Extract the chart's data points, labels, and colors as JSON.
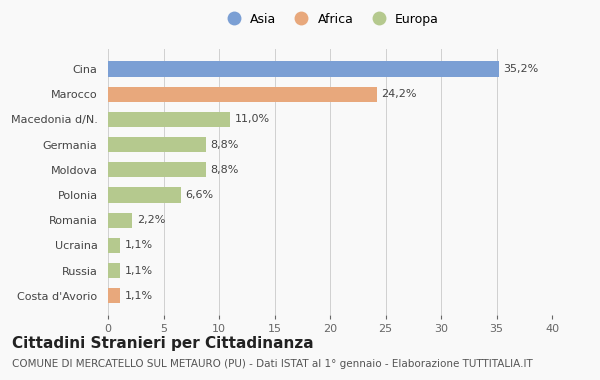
{
  "categories": [
    "Costa d'Avorio",
    "Russia",
    "Ucraina",
    "Romania",
    "Polonia",
    "Moldova",
    "Germania",
    "Macedonia d/N.",
    "Marocco",
    "Cina"
  ],
  "values": [
    1.1,
    1.1,
    1.1,
    2.2,
    6.6,
    8.8,
    8.8,
    11.0,
    24.2,
    35.2
  ],
  "colors": [
    "#e8a87c",
    "#b5c98e",
    "#b5c98e",
    "#b5c98e",
    "#b5c98e",
    "#b5c98e",
    "#b5c98e",
    "#b5c98e",
    "#e8a87c",
    "#7b9fd4"
  ],
  "labels": [
    "1,1%",
    "1,1%",
    "1,1%",
    "2,2%",
    "6,6%",
    "8,8%",
    "8,8%",
    "11,0%",
    "24,2%",
    "35,2%"
  ],
  "legend_labels": [
    "Asia",
    "Africa",
    "Europa"
  ],
  "legend_colors": [
    "#7b9fd4",
    "#e8a87c",
    "#b5c98e"
  ],
  "title": "Cittadini Stranieri per Cittadinanza",
  "subtitle": "COMUNE DI MERCATELLO SUL METAURO (PU) - Dati ISTAT al 1° gennaio - Elaborazione TUTTITALIA.IT",
  "xlim": [
    0,
    40
  ],
  "xticks": [
    0,
    5,
    10,
    15,
    20,
    25,
    30,
    35,
    40
  ],
  "background_color": "#f9f9f9",
  "bar_height": 0.6,
  "title_fontsize": 11,
  "subtitle_fontsize": 7.5,
  "label_fontsize": 8,
  "tick_fontsize": 8,
  "legend_fontsize": 9
}
